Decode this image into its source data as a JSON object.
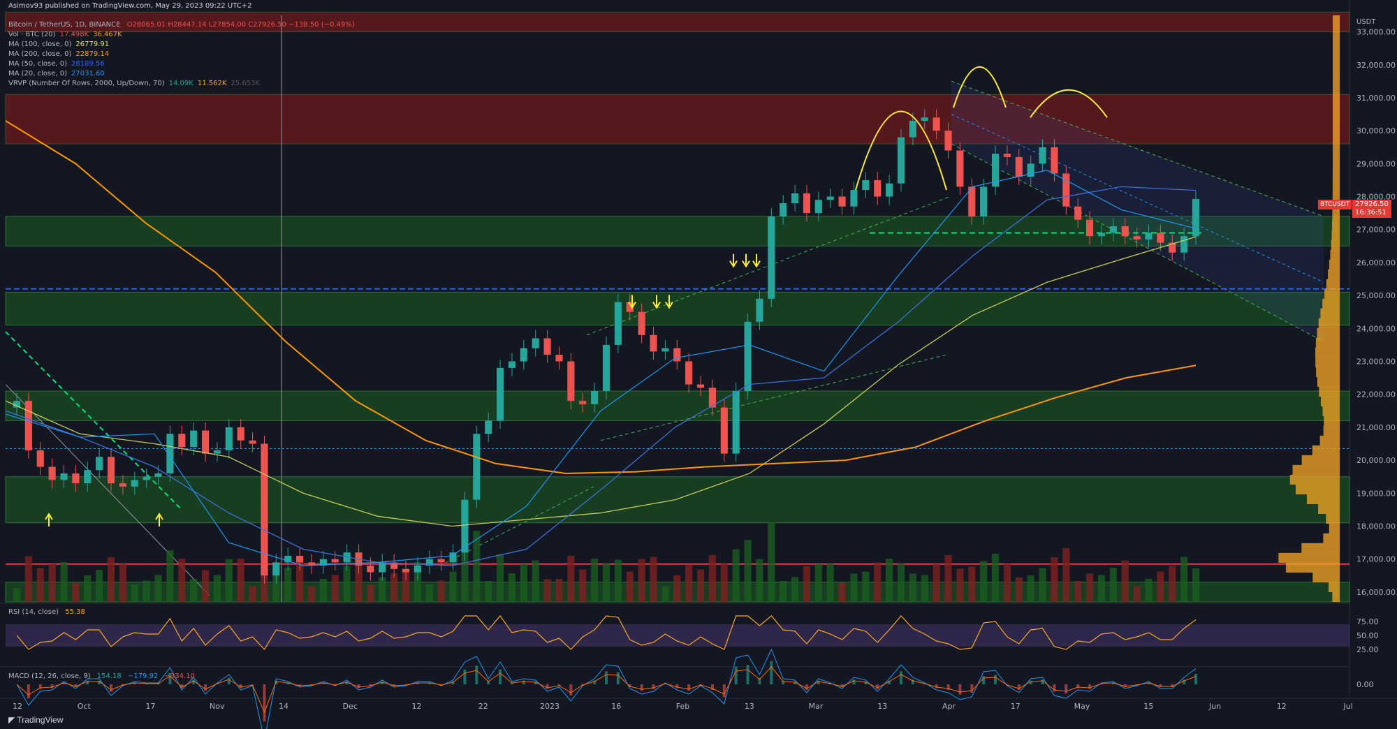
{
  "publisher": "Asimov93 published on TradingView.com, May 29, 2023 09:22 UTC+2",
  "symbol_line": {
    "name": "Bitcoin / TetherUS, 1D, BINANCE",
    "ohlc": "O28065.01  H28447.14  L27854.00  C27926.50  −138.50 (−0.49%)"
  },
  "indicators": [
    {
      "label": "Vol · BTC (20)",
      "values": [
        "17.498K",
        "36.467K"
      ],
      "colors": [
        "#ef5350",
        "#f9a825"
      ]
    },
    {
      "label": "MA (100, close, 0)",
      "values": [
        "26779.91"
      ],
      "colors": [
        "#e0e37a"
      ]
    },
    {
      "label": "MA (200, close, 0)",
      "values": [
        "22879.14"
      ],
      "colors": [
        "#ff9800"
      ]
    },
    {
      "label": "MA (50, close, 0)",
      "values": [
        "28189.56"
      ],
      "colors": [
        "#2962ff"
      ]
    },
    {
      "label": "MA (20, close, 0)",
      "values": [
        "27031.60"
      ],
      "colors": [
        "#2196f3"
      ]
    },
    {
      "label": "VRVP (Number Of Rows, 2000, Up/Down, 70)",
      "values": [
        "14.09K",
        "11.562K",
        "25.653K"
      ],
      "colors": [
        "#26a69a",
        "#f9a825",
        "#555"
      ]
    }
  ],
  "rsi_label": "RSI (14, close)",
  "rsi_value": "55.38",
  "macd_label": "MACD (12, 26, close, 9)",
  "macd_values": [
    "154.18",
    "−179.92",
    "−334.10"
  ],
  "currency": "USDT",
  "last_price": "27926.50",
  "countdown": "16:36:51",
  "ticker": "BTCUSDT",
  "brand": "TradingView",
  "colors": {
    "up": "#26a69a",
    "down": "#ef5350",
    "ma20": "#2196f3",
    "ma50": "#3f6fd8",
    "ma100": "#c8cc5a",
    "ma200": "#ff9800",
    "resistance": "#8b1a1a",
    "support": "#1b5e20"
  },
  "chart_data": {
    "type": "candlestick",
    "x_ticks": [
      "12",
      "Oct",
      "17",
      "Nov",
      "14",
      "Dec",
      "12",
      "22",
      "2023",
      "16",
      "Feb",
      "13",
      "Mar",
      "13",
      "Apr",
      "17",
      "May",
      "15",
      "Jun",
      "12",
      "Jul"
    ],
    "y_ticks": [
      16000,
      17000,
      18000,
      19000,
      20000,
      21000,
      22000,
      23000,
      24000,
      25000,
      26000,
      27000,
      28000,
      29000,
      30000,
      31000,
      32000,
      33000
    ],
    "ylim": [
      15700,
      33500
    ],
    "rsi_ticks": [
      25,
      50,
      75
    ],
    "macd_ticks": [
      0
    ],
    "resistance_zones": [
      [
        33000,
        33600
      ],
      [
        29600,
        31100
      ]
    ],
    "support_zones": [
      [
        26500,
        27400
      ],
      [
        24100,
        25100
      ],
      [
        21200,
        22100
      ],
      [
        18100,
        19500
      ],
      [
        15700,
        16300
      ]
    ],
    "horizontal_levels": [
      {
        "y": 25200,
        "style": "blue-dashed"
      },
      {
        "y": 20350,
        "style": "blue-dotted"
      },
      {
        "y": 16850,
        "style": "red"
      },
      {
        "y": 26900,
        "style": "green-dashed"
      }
    ],
    "ma200": [
      30300,
      29000,
      27200,
      25700,
      23600,
      21800,
      20600,
      19900,
      19600,
      19650,
      19800,
      19900,
      20000,
      20400,
      21200,
      21900,
      22500,
      22879
    ],
    "ma100": [
      21800,
      20800,
      20500,
      20100,
      19000,
      18300,
      18000,
      18200,
      18400,
      18800,
      19600,
      21100,
      22900,
      24400,
      25400,
      26100,
      26779
    ],
    "ma50": [
      21500,
      20700,
      19800,
      18400,
      17300,
      16900,
      16800,
      17300,
      19100,
      21000,
      22300,
      22500,
      24200,
      26200,
      27900,
      28300,
      28189
    ],
    "ma20": [
      21400,
      20700,
      20800,
      17500,
      16800,
      16900,
      17100,
      18600,
      21500,
      23100,
      23500,
      22700,
      25600,
      28300,
      28800,
      27600,
      27031
    ],
    "closes": [
      21800,
      20300,
      19800,
      19400,
      19600,
      19300,
      19700,
      20100,
      19300,
      19200,
      19400,
      19500,
      19600,
      20800,
      20400,
      20900,
      20200,
      20300,
      21000,
      20600,
      20500,
      16500,
      16900,
      17100,
      16900,
      16800,
      17000,
      16900,
      17200,
      16800,
      16600,
      16900,
      16700,
      16600,
      16800,
      17000,
      16900,
      17200,
      18800,
      20800,
      21200,
      22800,
      23000,
      23400,
      23700,
      23200,
      23000,
      21800,
      21700,
      22100,
      23500,
      24800,
      24500,
      23800,
      23300,
      23400,
      23000,
      22300,
      22200,
      21600,
      20200,
      22100,
      24200,
      24900,
      27400,
      27800,
      28100,
      27500,
      27900,
      28000,
      27700,
      28200,
      28500,
      28000,
      28400,
      29800,
      30300,
      30400,
      30000,
      29400,
      28300,
      27400,
      28300,
      29300,
      29200,
      28600,
      29000,
      29500,
      28700,
      27700,
      27300,
      26800,
      26900,
      27100,
      26800,
      26700,
      26900,
      26600,
      26300,
      26800,
      27926
    ],
    "annotations": {
      "up_arrows": 2,
      "down_arrows": 6,
      "double_top_arcs": 3
    }
  }
}
